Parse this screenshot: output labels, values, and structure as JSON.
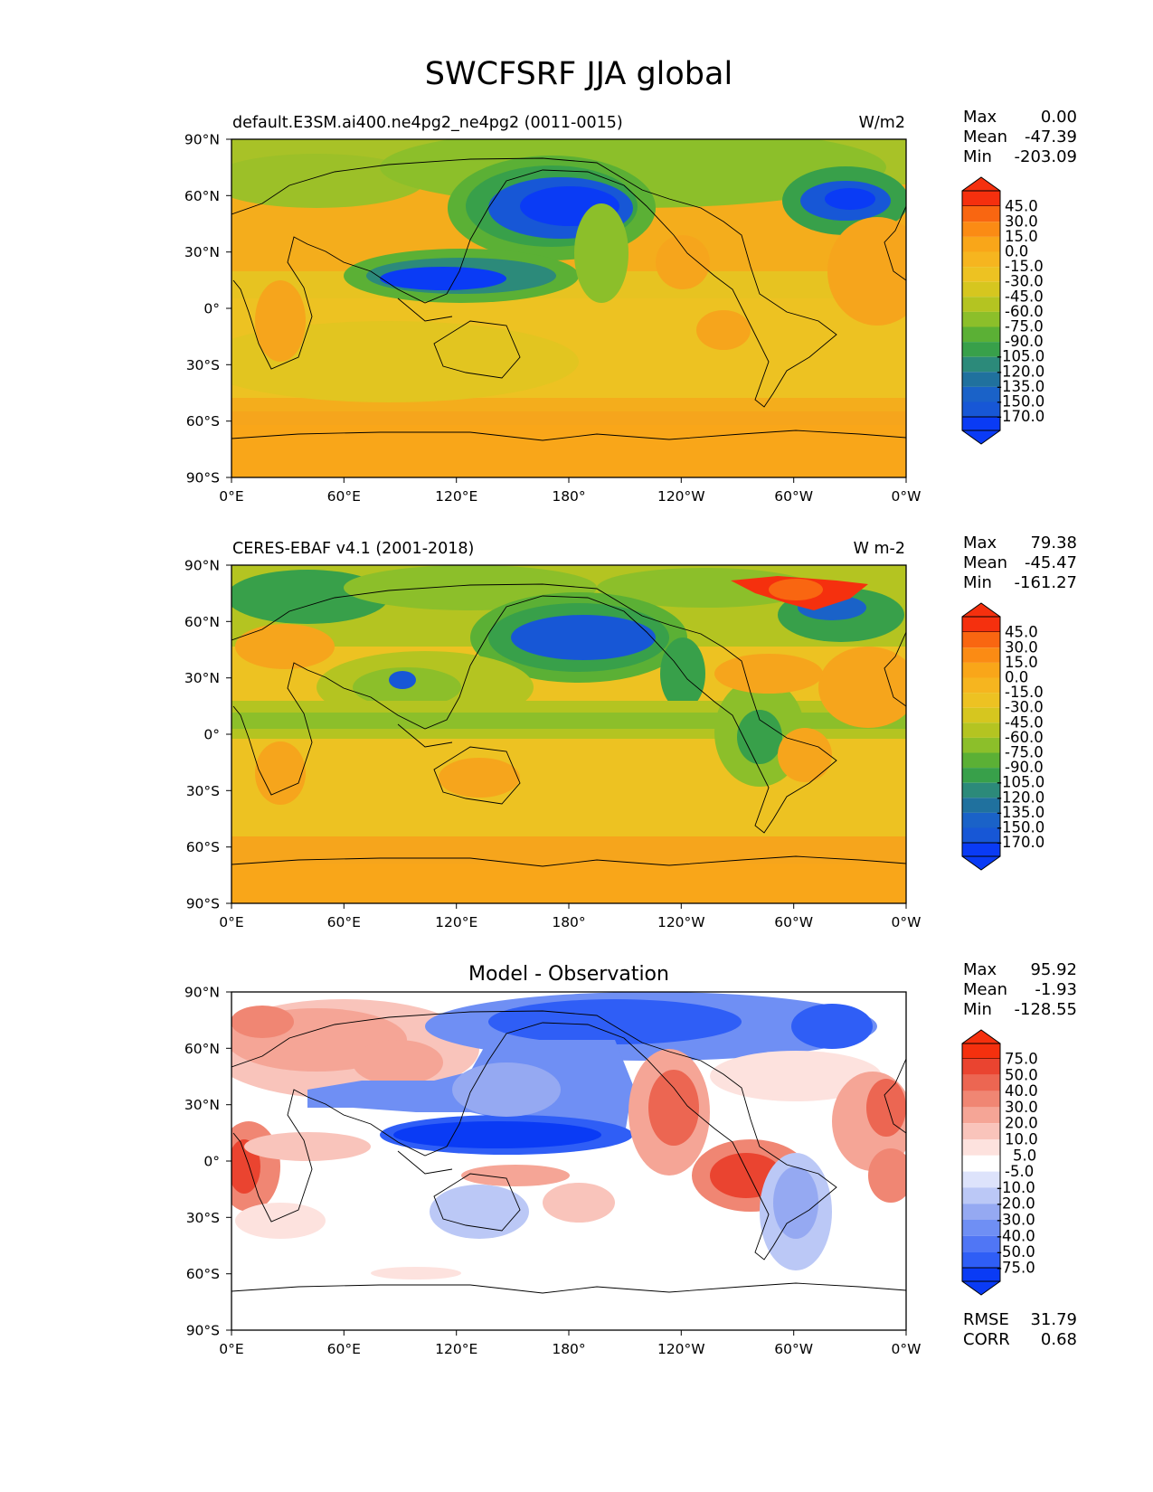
{
  "title": "SWCFSRF JJA global",
  "lat_ticks": [
    "90°N",
    "60°N",
    "30°N",
    "0°",
    "30°S",
    "60°S",
    "90°S"
  ],
  "lon_ticks": [
    "0°E",
    "60°E",
    "120°E",
    "180°",
    "120°W",
    "60°W",
    "0°W"
  ],
  "stat_labels": {
    "max": "Max",
    "mean": "Mean",
    "min": "Min",
    "rmse": "RMSE",
    "corr": "CORR"
  },
  "colors": {
    "map_levels_low_to_high": [
      "#0a3bf5",
      "#1757d6",
      "#20719e",
      "#2c8a7a",
      "#38a04a",
      "#5bb035",
      "#8cbf2a",
      "#b4c421",
      "#d6c61f",
      "#edc222",
      "#f6b51f",
      "#f9a619",
      "#fb8b14",
      "#f96611",
      "#f5300e"
    ],
    "diff_levels_low_to_high": [
      "#0a3bf5",
      "#2f5ef6",
      "#5076f5",
      "#6f8ff4",
      "#95a9f2",
      "#bbc8f6",
      "#dde3fb",
      "#ffffff",
      "#fde2de",
      "#f9c4bb",
      "#f5a596",
      "#f08673",
      "#ec6652",
      "#ea4430",
      "#f5300e"
    ],
    "ocean_base": "#f4ad1c",
    "coastline": "#000000"
  },
  "panels": [
    {
      "id": "model",
      "left_title": "default.E3SM.ai400.ne4pg2_ne4pg2 (0011-0015)",
      "center_title": "",
      "right_title": "W/m2",
      "stats": {
        "max": "0.00",
        "mean": "-47.39",
        "min": "-203.09"
      },
      "colorbar_labels": [
        "45.0",
        "30.0",
        "15.0",
        "0.0",
        "-15.0",
        "-30.0",
        "-45.0",
        "-60.0",
        "-75.0",
        "-90.0",
        "-105.0",
        "-120.0",
        "-135.0",
        "-150.0",
        "-170.0"
      ]
    },
    {
      "id": "obs",
      "left_title": "CERES-EBAF v4.1 (2001-2018)",
      "center_title": "",
      "right_title": "W m-2",
      "stats": {
        "max": "79.38",
        "mean": "-45.47",
        "min": "-161.27"
      },
      "colorbar_labels": [
        "45.0",
        "30.0",
        "15.0",
        "0.0",
        "-15.0",
        "-30.0",
        "-45.0",
        "-60.0",
        "-75.0",
        "-90.0",
        "-105.0",
        "-120.0",
        "-135.0",
        "-150.0",
        "-170.0"
      ]
    },
    {
      "id": "diff",
      "left_title": "",
      "center_title": "Model - Observation",
      "right_title": "",
      "stats": {
        "max": "95.92",
        "mean": "-1.93",
        "min": "-128.55",
        "rmse": "31.79",
        "corr": "0.68"
      },
      "colorbar_labels": [
        "75.0",
        "50.0",
        "40.0",
        "30.0",
        "20.0",
        "10.0",
        "5.0",
        "-5.0",
        "-10.0",
        "-20.0",
        "-30.0",
        "-40.0",
        "-50.0",
        "-75.0"
      ]
    }
  ]
}
